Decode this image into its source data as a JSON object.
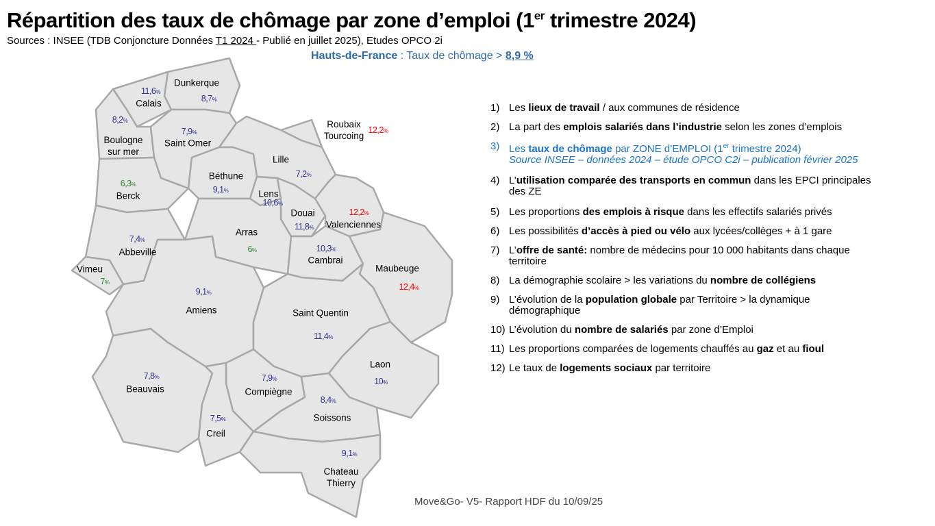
{
  "header": {
    "title": "Répartition des taux de chômage par zone d’emploi (1",
    "title_sup": "er",
    "title_end": " trimestre 2024)",
    "sources_prefix": "Sources : INSEE (TDB Conjoncture Données ",
    "sources_underlined": "T1 2024 ",
    "sources_suffix": "-  Publié en juillet 2025), Etudes OPCO 2i",
    "region_label": "Hauts-de-France",
    "region_text": " : Taux de chômage > ",
    "region_rate": "8,9 %"
  },
  "colors": {
    "blue": "#2e3192",
    "red": "#ff0000",
    "green": "#2e8b2e",
    "highlight": "#1a73c7"
  },
  "zones": [
    {
      "name": "Dunkerque",
      "rate": "8,7",
      "color": "blue"
    },
    {
      "name": "Calais",
      "rate": "11,6",
      "color": "blue"
    },
    {
      "name": "Boulogne sur mer",
      "rate": "8,2",
      "color": "blue"
    },
    {
      "name": "Saint Omer",
      "rate": "7,9",
      "color": "blue"
    },
    {
      "name": "Roubaix Tourcoing",
      "rate": "12,2",
      "color": "red"
    },
    {
      "name": "Lille",
      "rate": "7,2",
      "color": "blue"
    },
    {
      "name": "Béthune",
      "rate": "9,1",
      "color": "blue"
    },
    {
      "name": "Berck",
      "rate": "6,3",
      "color": "green"
    },
    {
      "name": "Lens",
      "rate": "10,6",
      "color": "blue"
    },
    {
      "name": "Douai",
      "rate": "11,8",
      "color": "blue"
    },
    {
      "name": "Valenciennes",
      "rate": "12,2",
      "color": "red"
    },
    {
      "name": "Arras",
      "rate": "6",
      "color": "green"
    },
    {
      "name": "Abbeville",
      "rate": "7,4",
      "color": "blue"
    },
    {
      "name": "Cambrai",
      "rate": "10,3",
      "color": "blue"
    },
    {
      "name": "Maubeuge",
      "rate": "12,4",
      "color": "red"
    },
    {
      "name": "Vimeu",
      "rate": "7",
      "color": "green"
    },
    {
      "name": "Amiens",
      "rate": "9,1",
      "color": "blue"
    },
    {
      "name": "Saint Quentin",
      "rate": "11,4",
      "color": "blue"
    },
    {
      "name": "Laon",
      "rate": "10",
      "color": "blue"
    },
    {
      "name": "Beauvais",
      "rate": "7,8",
      "color": "blue"
    },
    {
      "name": "Compiègne",
      "rate": "7,9",
      "color": "blue"
    },
    {
      "name": "Creil",
      "rate": "7,5",
      "color": "blue"
    },
    {
      "name": "Soissons",
      "rate": "8,4",
      "color": "blue"
    },
    {
      "name": "Chateau Thierry",
      "rate": "9,1",
      "color": "blue"
    }
  ],
  "percent_sign": "%",
  "list": [
    {
      "num": "1)",
      "parts": [
        {
          "t": "Les "
        },
        {
          "t": "lieux de travail",
          "b": true
        },
        {
          "t": " / aux communes de résidence"
        }
      ]
    },
    {
      "num": "2)",
      "parts": [
        {
          "t": "La part des "
        },
        {
          "t": "emplois salariés dans l’industrie",
          "b": true
        },
        {
          "t": " selon les zones d’emplois"
        }
      ]
    },
    {
      "num": "3)",
      "highlight": true,
      "parts": [
        {
          "t": "Les "
        },
        {
          "t": "taux de chômage",
          "b": true
        },
        {
          "t": " par ZONE d’EMPLOI (1"
        },
        {
          "t": "er",
          "sup": true
        },
        {
          "t": " trimestre 2024)"
        }
      ],
      "sub": "Source INSEE – données 2024 – étude OPCO C2i – publication février 2025"
    },
    {
      "num": "4)",
      "parts": [
        {
          "t": "L’"
        },
        {
          "t": "utilisation comparée des transports en commun",
          "b": true
        },
        {
          "t": " dans les EPCI principales des ZE"
        }
      ]
    },
    {
      "num": "5)",
      "parts": [
        {
          "t": "Les proportions "
        },
        {
          "t": "des emplois à risque",
          "b": true
        },
        {
          "t": " dans les effectifs salariés privés"
        }
      ]
    },
    {
      "num": "6)",
      "parts": [
        {
          "t": "Les possibilités "
        },
        {
          "t": "d’accès à pied ou vélo",
          "b": true
        },
        {
          "t": " aux lycées/collèges + à 1 gare"
        }
      ]
    },
    {
      "num": "7)",
      "parts": [
        {
          "t": "L’"
        },
        {
          "t": "offre de santé:",
          "b": true
        },
        {
          "t": " nombre de médecins  pour 10 000 habitants dans chaque territoire"
        }
      ]
    },
    {
      "num": "8)",
      "parts": [
        {
          "t": "La démographie scolaire > les variations du "
        },
        {
          "t": "nombre de collégiens",
          "b": true
        }
      ]
    },
    {
      "num": "9)",
      "parts": [
        {
          "t": "L’évolution de la "
        },
        {
          "t": "population globale",
          "b": true
        },
        {
          "t": " par Territoire > la dynamique démographique"
        }
      ]
    },
    {
      "num": "10)",
      "parts": [
        {
          "t": "L’évolution du "
        },
        {
          "t": "nombre de salariés",
          "b": true
        },
        {
          "t": " par zone d’Emploi"
        }
      ]
    },
    {
      "num": "11)",
      "parts": [
        {
          "t": "Les proportions comparées de logements chauffés au "
        },
        {
          "t": "gaz",
          "b": true
        },
        {
          "t": " et au "
        },
        {
          "t": "fioul",
          "b": true
        }
      ]
    },
    {
      "num": "12)",
      "parts": [
        {
          "t": "Le taux de "
        },
        {
          "t": "logements sociaux",
          "b": true
        },
        {
          "t": " par territoire"
        }
      ]
    }
  ],
  "footer": "Move&Go- V5- Rapport HDF du 10/09/25"
}
